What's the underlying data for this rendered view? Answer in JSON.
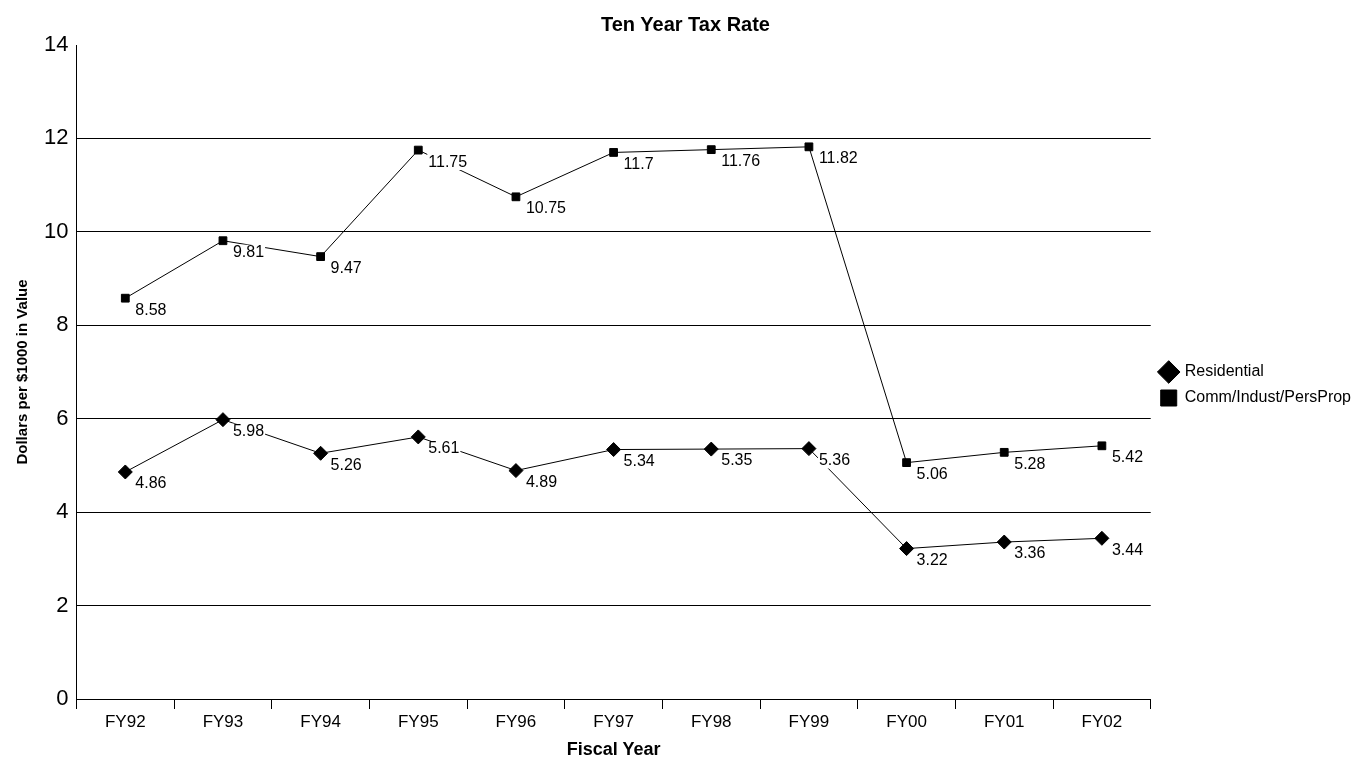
{
  "chart_data": {
    "type": "line",
    "title": "Ten Year Tax Rate",
    "xlabel": "Fiscal Year",
    "ylabel": "Dollars per $1000 in Value",
    "categories": [
      "FY92",
      "FY93",
      "FY94",
      "FY95",
      "FY96",
      "FY97",
      "FY98",
      "FY99",
      "FY00",
      "FY01",
      "FY02"
    ],
    "series": [
      {
        "name": "Residential",
        "color": "#000000",
        "marker": "diamond",
        "values": [
          4.86,
          5.98,
          5.26,
          5.61,
          4.89,
          5.34,
          5.35,
          5.36,
          3.22,
          3.36,
          3.44
        ]
      },
      {
        "name": "Comm/Indust/PersProp",
        "color": "#000000",
        "marker": "square",
        "values": [
          8.58,
          9.81,
          9.47,
          11.75,
          10.75,
          11.7,
          11.76,
          11.82,
          5.06,
          5.28,
          5.42
        ]
      }
    ],
    "ylim": [
      0,
      14
    ],
    "yticks": [
      0,
      2,
      4,
      6,
      8,
      10,
      12,
      14
    ],
    "grid": "y",
    "legend": "right",
    "data_labels": true,
    "line_style": "solid"
  }
}
